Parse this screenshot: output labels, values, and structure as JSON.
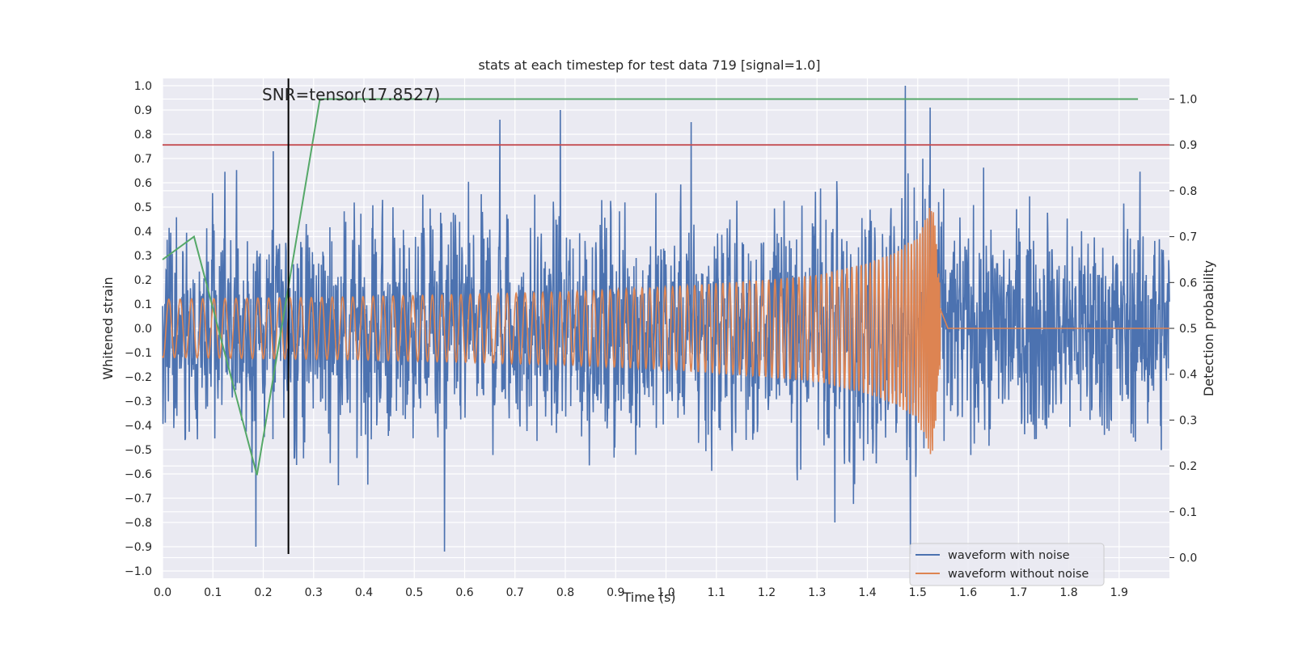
{
  "chart_data": {
    "type": "line",
    "title": "stats at each timestep for test data 719 [signal=1.0]",
    "xlabel": "Time (s)",
    "ylabel": "Whitened strain",
    "y2label": "Detection probability",
    "xlim": [
      0.0,
      2.0
    ],
    "ylim": [
      -1.03,
      1.03
    ],
    "y2lim": [
      -0.045,
      1.045
    ],
    "x_ticks": [
      "0.0",
      "0.1",
      "0.2",
      "0.3",
      "0.4",
      "0.5",
      "0.6",
      "0.7",
      "0.8",
      "0.9",
      "1.0",
      "1.1",
      "1.2",
      "1.3",
      "1.4",
      "1.5",
      "1.6",
      "1.7",
      "1.8",
      "1.9"
    ],
    "y_ticks": [
      "−1.0",
      "−0.9",
      "−0.8",
      "−0.7",
      "−0.6",
      "−0.5",
      "−0.4",
      "−0.3",
      "−0.2",
      "−0.1",
      "0.0",
      "0.1",
      "0.2",
      "0.3",
      "0.4",
      "0.5",
      "0.6",
      "0.7",
      "0.8",
      "0.9",
      "1.0"
    ],
    "y2_ticks": [
      "0.0",
      "0.1",
      "0.2",
      "0.3",
      "0.4",
      "0.5",
      "0.6",
      "0.7",
      "0.8",
      "0.9",
      "1.0"
    ],
    "grid": true,
    "legend_position": "lower-right",
    "series": [
      {
        "name": "waveform with noise",
        "color": "#4c72b0",
        "axis": "left",
        "description": "dense whitened noise, amplitude mostly within ±0.6, peaks near ±1.0",
        "amplitude_envelope": 0.6,
        "peaks": [
          {
            "x": 0.185,
            "y": -0.9
          },
          {
            "x": 0.22,
            "y": 0.73
          },
          {
            "x": 0.56,
            "y": -0.92
          },
          {
            "x": 0.67,
            "y": 0.86
          },
          {
            "x": 0.79,
            "y": 0.9
          },
          {
            "x": 1.05,
            "y": 0.85
          },
          {
            "x": 1.335,
            "y": -0.8
          },
          {
            "x": 1.475,
            "y": 1.0
          },
          {
            "x": 1.485,
            "y": -0.93
          },
          {
            "x": 1.525,
            "y": 0.91
          }
        ]
      },
      {
        "name": "waveform without noise",
        "color": "#dd8452",
        "axis": "left",
        "description": "chirp: oscillation amplitude grows toward merger near 1.54 s, then flat zero",
        "envelope": {
          "t": [
            0.0,
            0.4,
            0.8,
            1.0,
            1.2,
            1.3,
            1.4,
            1.45,
            1.5,
            1.53,
            1.545,
            1.56,
            2.0
          ],
          "amp": [
            0.12,
            0.13,
            0.15,
            0.17,
            0.2,
            0.22,
            0.27,
            0.31,
            0.38,
            0.55,
            0.15,
            0.0,
            0.0
          ]
        }
      },
      {
        "name": "detection probability",
        "color": "#55a868",
        "axis": "right",
        "x": [
          0.0,
          0.0625,
          0.1875,
          0.3125,
          1.9375
        ],
        "y": [
          0.65,
          0.7,
          0.18,
          1.0,
          1.0
        ]
      }
    ],
    "hlines": [
      {
        "y2": 0.9,
        "color": "#c44e52",
        "axis": "right"
      }
    ],
    "vlines": [
      {
        "x": 0.25,
        "color": "#000000",
        "y_from": -0.93,
        "y_to": 1.03
      }
    ],
    "annotation": {
      "text": "SNR=tensor(17.8527)",
      "x": 0.2,
      "y": 1.0
    }
  }
}
